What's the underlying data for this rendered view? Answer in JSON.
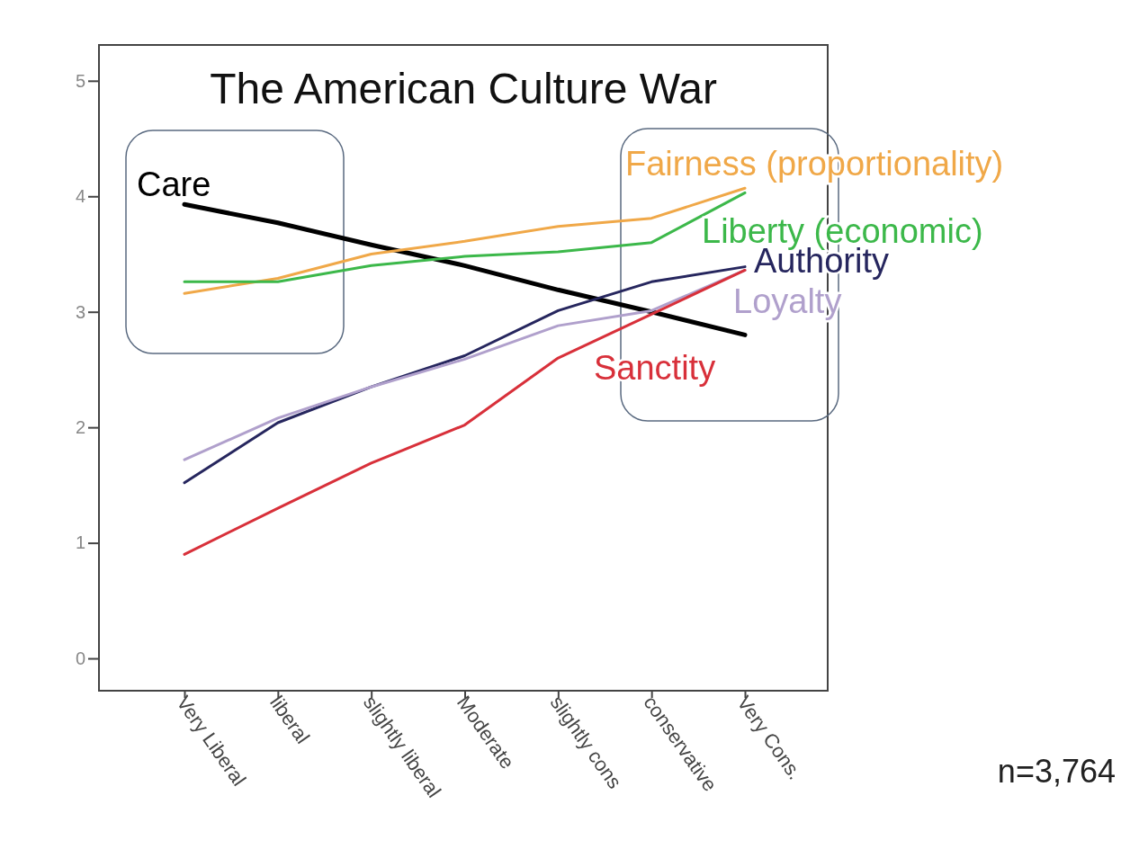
{
  "chart_data": {
    "type": "line",
    "title": "The American Culture War",
    "categories": [
      "Very Liberal",
      "liberal",
      "slightly liberal",
      "Moderate",
      "slightly cons",
      "conservative",
      "Very Cons."
    ],
    "series": [
      {
        "name": "Care",
        "color": "#000000",
        "values": [
          3.93,
          3.77,
          3.58,
          3.4,
          3.19,
          3.0,
          2.8
        ]
      },
      {
        "name": "Fairness (proportionality)",
        "color": "#f0a848",
        "values": [
          3.16,
          3.29,
          3.5,
          3.61,
          3.74,
          3.81,
          4.07
        ]
      },
      {
        "name": "Liberty (economic)",
        "color": "#3cb84a",
        "values": [
          3.26,
          3.26,
          3.4,
          3.48,
          3.52,
          3.6,
          4.03
        ]
      },
      {
        "name": "Authority",
        "color": "#26265e",
        "values": [
          1.52,
          2.04,
          2.35,
          2.62,
          3.01,
          3.26,
          3.39
        ]
      },
      {
        "name": "Loyalty",
        "color": "#b0a0cc",
        "values": [
          1.72,
          2.08,
          2.35,
          2.59,
          2.88,
          3.01,
          3.36
        ]
      },
      {
        "name": "Sanctity",
        "color": "#d8303a",
        "values": [
          0.9,
          1.3,
          1.69,
          2.02,
          2.6,
          2.98,
          3.36
        ]
      }
    ],
    "ylim": [
      -0.28,
      5.31
    ],
    "yticks": [
      0,
      1,
      2,
      3,
      4,
      5
    ],
    "grid": false,
    "annotations": [
      "n=3,764"
    ]
  }
}
